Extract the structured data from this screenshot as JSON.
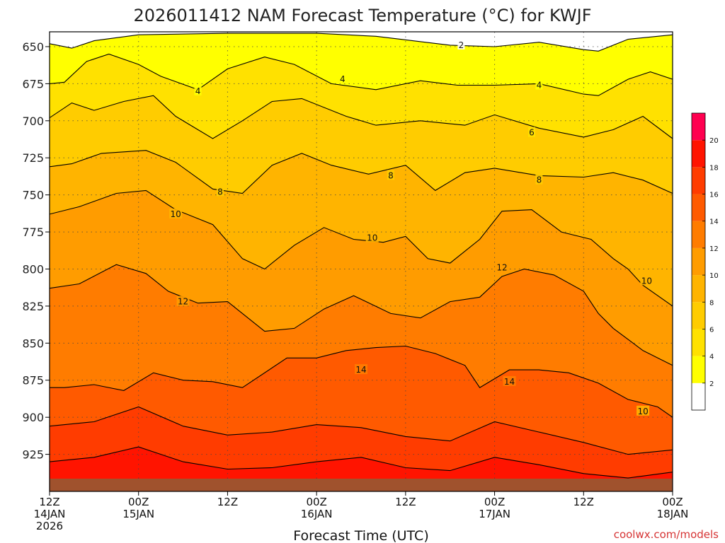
{
  "chart_data": {
    "type": "contour",
    "title": "2026011412 NAM Forecast Temperature (°C) for KWJF",
    "xlabel": "Forecast Time (UTC)",
    "ylabel": "",
    "credit": "coolwx.com/models",
    "x_hours": [
      0,
      84
    ],
    "y_levels": [
      640,
      950
    ],
    "y_ticks": [
      650,
      675,
      700,
      725,
      750,
      775,
      800,
      825,
      850,
      875,
      900,
      925
    ],
    "x_ticks": [
      {
        "hour": 0,
        "line1": "12Z",
        "line2": "14JAN",
        "line3": "2026"
      },
      {
        "hour": 12,
        "line1": "00Z",
        "line2": "15JAN",
        "line3": ""
      },
      {
        "hour": 24,
        "line1": "12Z",
        "line2": "",
        "line3": ""
      },
      {
        "hour": 36,
        "line1": "00Z",
        "line2": "16JAN",
        "line3": ""
      },
      {
        "hour": 48,
        "line1": "12Z",
        "line2": "",
        "line3": ""
      },
      {
        "hour": 60,
        "line1": "00Z",
        "line2": "17JAN",
        "line3": ""
      },
      {
        "hour": 72,
        "line1": "12Z",
        "line2": "",
        "line3": ""
      },
      {
        "hour": 84,
        "line1": "00Z",
        "line2": "18JAN",
        "line3": ""
      }
    ],
    "colorbar": [
      {
        "from": 0,
        "to": 2,
        "color": "#ffffff"
      },
      {
        "from": 2,
        "to": 4,
        "color": "#ffff00"
      },
      {
        "from": 4,
        "to": 6,
        "color": "#ffe100"
      },
      {
        "from": 6,
        "to": 8,
        "color": "#ffcc00"
      },
      {
        "from": 8,
        "to": 10,
        "color": "#ffb400"
      },
      {
        "from": 10,
        "to": 12,
        "color": "#ff9c00"
      },
      {
        "from": 12,
        "to": 14,
        "color": "#ff7c00"
      },
      {
        "from": 14,
        "to": 16,
        "color": "#ff5a00"
      },
      {
        "from": 16,
        "to": 18,
        "color": "#ff3c00"
      },
      {
        "from": 18,
        "to": 20,
        "color": "#ff1400"
      },
      {
        "from": 20,
        "to": 22,
        "color": "#ff0050"
      }
    ],
    "colorbar_labels": [
      "2",
      "4",
      "6",
      "8",
      "10",
      "12",
      "14",
      "16",
      "18",
      "20"
    ],
    "ground_color": "#a0522d",
    "contours": [
      {
        "value": 2,
        "label": "2",
        "points": [
          [
            0,
            648
          ],
          [
            3,
            651
          ],
          [
            6,
            646
          ],
          [
            12,
            642
          ],
          [
            24,
            641
          ],
          [
            36,
            641
          ],
          [
            44,
            643
          ],
          [
            54,
            649
          ],
          [
            60,
            650
          ],
          [
            66,
            647
          ],
          [
            72,
            652
          ],
          [
            74,
            653
          ],
          [
            78,
            645
          ],
          [
            84,
            642
          ]
        ]
      },
      {
        "value": 4,
        "label": "4",
        "points": [
          [
            0,
            675
          ],
          [
            2,
            674
          ],
          [
            5,
            660
          ],
          [
            8,
            655
          ],
          [
            12,
            662
          ],
          [
            15,
            670
          ],
          [
            20,
            679
          ],
          [
            24,
            665
          ],
          [
            29,
            657
          ],
          [
            33,
            662
          ],
          [
            38,
            675
          ],
          [
            44,
            679
          ],
          [
            50,
            673
          ],
          [
            55,
            676
          ],
          [
            60,
            676
          ],
          [
            66,
            675
          ],
          [
            72,
            682
          ],
          [
            74,
            683
          ],
          [
            78,
            672
          ],
          [
            81,
            667
          ],
          [
            84,
            672
          ]
        ]
      },
      {
        "value": 6,
        "label": "6",
        "points": [
          [
            0,
            698
          ],
          [
            3,
            688
          ],
          [
            6,
            693
          ],
          [
            10,
            687
          ],
          [
            14,
            683
          ],
          [
            17,
            697
          ],
          [
            22,
            712
          ],
          [
            26,
            700
          ],
          [
            30,
            687
          ],
          [
            34,
            685
          ],
          [
            40,
            697
          ],
          [
            44,
            703
          ],
          [
            50,
            700
          ],
          [
            56,
            703
          ],
          [
            60,
            696
          ],
          [
            66,
            705
          ],
          [
            72,
            711
          ],
          [
            76,
            706
          ],
          [
            80,
            697
          ],
          [
            84,
            712
          ]
        ]
      },
      {
        "value": 8,
        "label": "8",
        "points": [
          [
            0,
            731
          ],
          [
            3,
            729
          ],
          [
            7,
            722
          ],
          [
            13,
            720
          ],
          [
            17,
            728
          ],
          [
            22,
            746
          ],
          [
            26,
            749
          ],
          [
            30,
            730
          ],
          [
            34,
            722
          ],
          [
            38,
            730
          ],
          [
            43,
            736
          ],
          [
            48,
            730
          ],
          [
            52,
            747
          ],
          [
            56,
            735
          ],
          [
            60,
            732
          ],
          [
            66,
            737
          ],
          [
            72,
            738
          ],
          [
            76,
            735
          ],
          [
            80,
            740
          ],
          [
            84,
            749
          ]
        ]
      },
      {
        "value": 10,
        "label": "10",
        "points": [
          [
            0,
            763
          ],
          [
            4,
            758
          ],
          [
            9,
            749
          ],
          [
            13,
            747
          ],
          [
            17,
            760
          ],
          [
            22,
            770
          ],
          [
            26,
            793
          ],
          [
            29,
            800
          ],
          [
            33,
            784
          ],
          [
            37,
            772
          ],
          [
            41,
            780
          ],
          [
            45,
            782
          ],
          [
            48,
            778
          ],
          [
            51,
            793
          ],
          [
            54,
            796
          ],
          [
            58,
            780
          ],
          [
            61,
            761
          ],
          [
            65,
            760
          ],
          [
            69,
            775
          ],
          [
            73,
            780
          ],
          [
            76,
            793
          ],
          [
            78,
            800
          ],
          [
            80,
            811
          ],
          [
            84,
            825
          ]
        ]
      },
      {
        "value": 12,
        "label": "12",
        "points": [
          [
            0,
            813
          ],
          [
            4,
            810
          ],
          [
            9,
            797
          ],
          [
            13,
            803
          ],
          [
            16,
            815
          ],
          [
            20,
            823
          ],
          [
            24,
            822
          ],
          [
            29,
            842
          ],
          [
            33,
            840
          ],
          [
            37,
            827
          ],
          [
            41,
            818
          ],
          [
            46,
            830
          ],
          [
            50,
            833
          ],
          [
            54,
            822
          ],
          [
            58,
            819
          ],
          [
            61,
            805
          ],
          [
            64,
            800
          ],
          [
            68,
            804
          ],
          [
            72,
            815
          ],
          [
            74,
            830
          ],
          [
            76,
            840
          ],
          [
            80,
            855
          ],
          [
            84,
            865
          ]
        ]
      },
      {
        "value": 14,
        "label": "14",
        "points": [
          [
            0,
            880
          ],
          [
            2,
            880
          ],
          [
            6,
            878
          ],
          [
            10,
            882
          ],
          [
            14,
            870
          ],
          [
            18,
            875
          ],
          [
            22,
            876
          ],
          [
            26,
            880
          ],
          [
            32,
            860
          ],
          [
            36,
            860
          ],
          [
            40,
            855
          ],
          [
            44,
            853
          ],
          [
            48,
            852
          ],
          [
            52,
            857
          ],
          [
            56,
            865
          ],
          [
            58,
            880
          ],
          [
            62,
            868
          ],
          [
            66,
            868
          ],
          [
            70,
            870
          ],
          [
            74,
            877
          ],
          [
            78,
            888
          ],
          [
            82,
            893
          ],
          [
            84,
            900
          ]
        ]
      },
      {
        "value": 16,
        "label": "16",
        "points": [
          [
            0,
            906
          ],
          [
            6,
            903
          ],
          [
            12,
            893
          ],
          [
            18,
            906
          ],
          [
            24,
            912
          ],
          [
            30,
            910
          ],
          [
            36,
            905
          ],
          [
            42,
            907
          ],
          [
            48,
            913
          ],
          [
            54,
            916
          ],
          [
            60,
            903
          ],
          [
            66,
            910
          ],
          [
            72,
            917
          ],
          [
            78,
            925
          ],
          [
            84,
            922
          ]
        ]
      },
      {
        "value": 18,
        "label": "18",
        "points": [
          [
            0,
            930
          ],
          [
            6,
            927
          ],
          [
            12,
            920
          ],
          [
            18,
            930
          ],
          [
            24,
            935
          ],
          [
            30,
            934
          ],
          [
            36,
            930
          ],
          [
            42,
            927
          ],
          [
            48,
            934
          ],
          [
            54,
            936
          ],
          [
            60,
            927
          ],
          [
            66,
            932
          ],
          [
            72,
            938
          ],
          [
            78,
            941
          ],
          [
            84,
            937
          ]
        ]
      }
    ],
    "labels_on_plot": [
      {
        "text": "2",
        "hour": 55.5,
        "level": 649
      },
      {
        "text": "4",
        "hour": 20,
        "level": 680
      },
      {
        "text": "4",
        "hour": 39.5,
        "level": 672
      },
      {
        "text": "4",
        "hour": 66,
        "level": 676
      },
      {
        "text": "6",
        "hour": 65,
        "level": 708
      },
      {
        "text": "8",
        "hour": 23,
        "level": 748
      },
      {
        "text": "8",
        "hour": 46,
        "level": 737
      },
      {
        "text": "8",
        "hour": 66,
        "level": 740
      },
      {
        "text": "10",
        "hour": 17,
        "level": 763
      },
      {
        "text": "10",
        "hour": 43.5,
        "level": 779
      },
      {
        "text": "10",
        "hour": 80.5,
        "level": 808
      },
      {
        "text": "12",
        "hour": 18,
        "level": 822
      },
      {
        "text": "12",
        "hour": 61,
        "level": 799
      },
      {
        "text": "14",
        "hour": 42,
        "level": 868
      },
      {
        "text": "14",
        "hour": 62,
        "level": 876
      },
      {
        "text": "10",
        "hour": 80,
        "level": 896
      }
    ]
  }
}
